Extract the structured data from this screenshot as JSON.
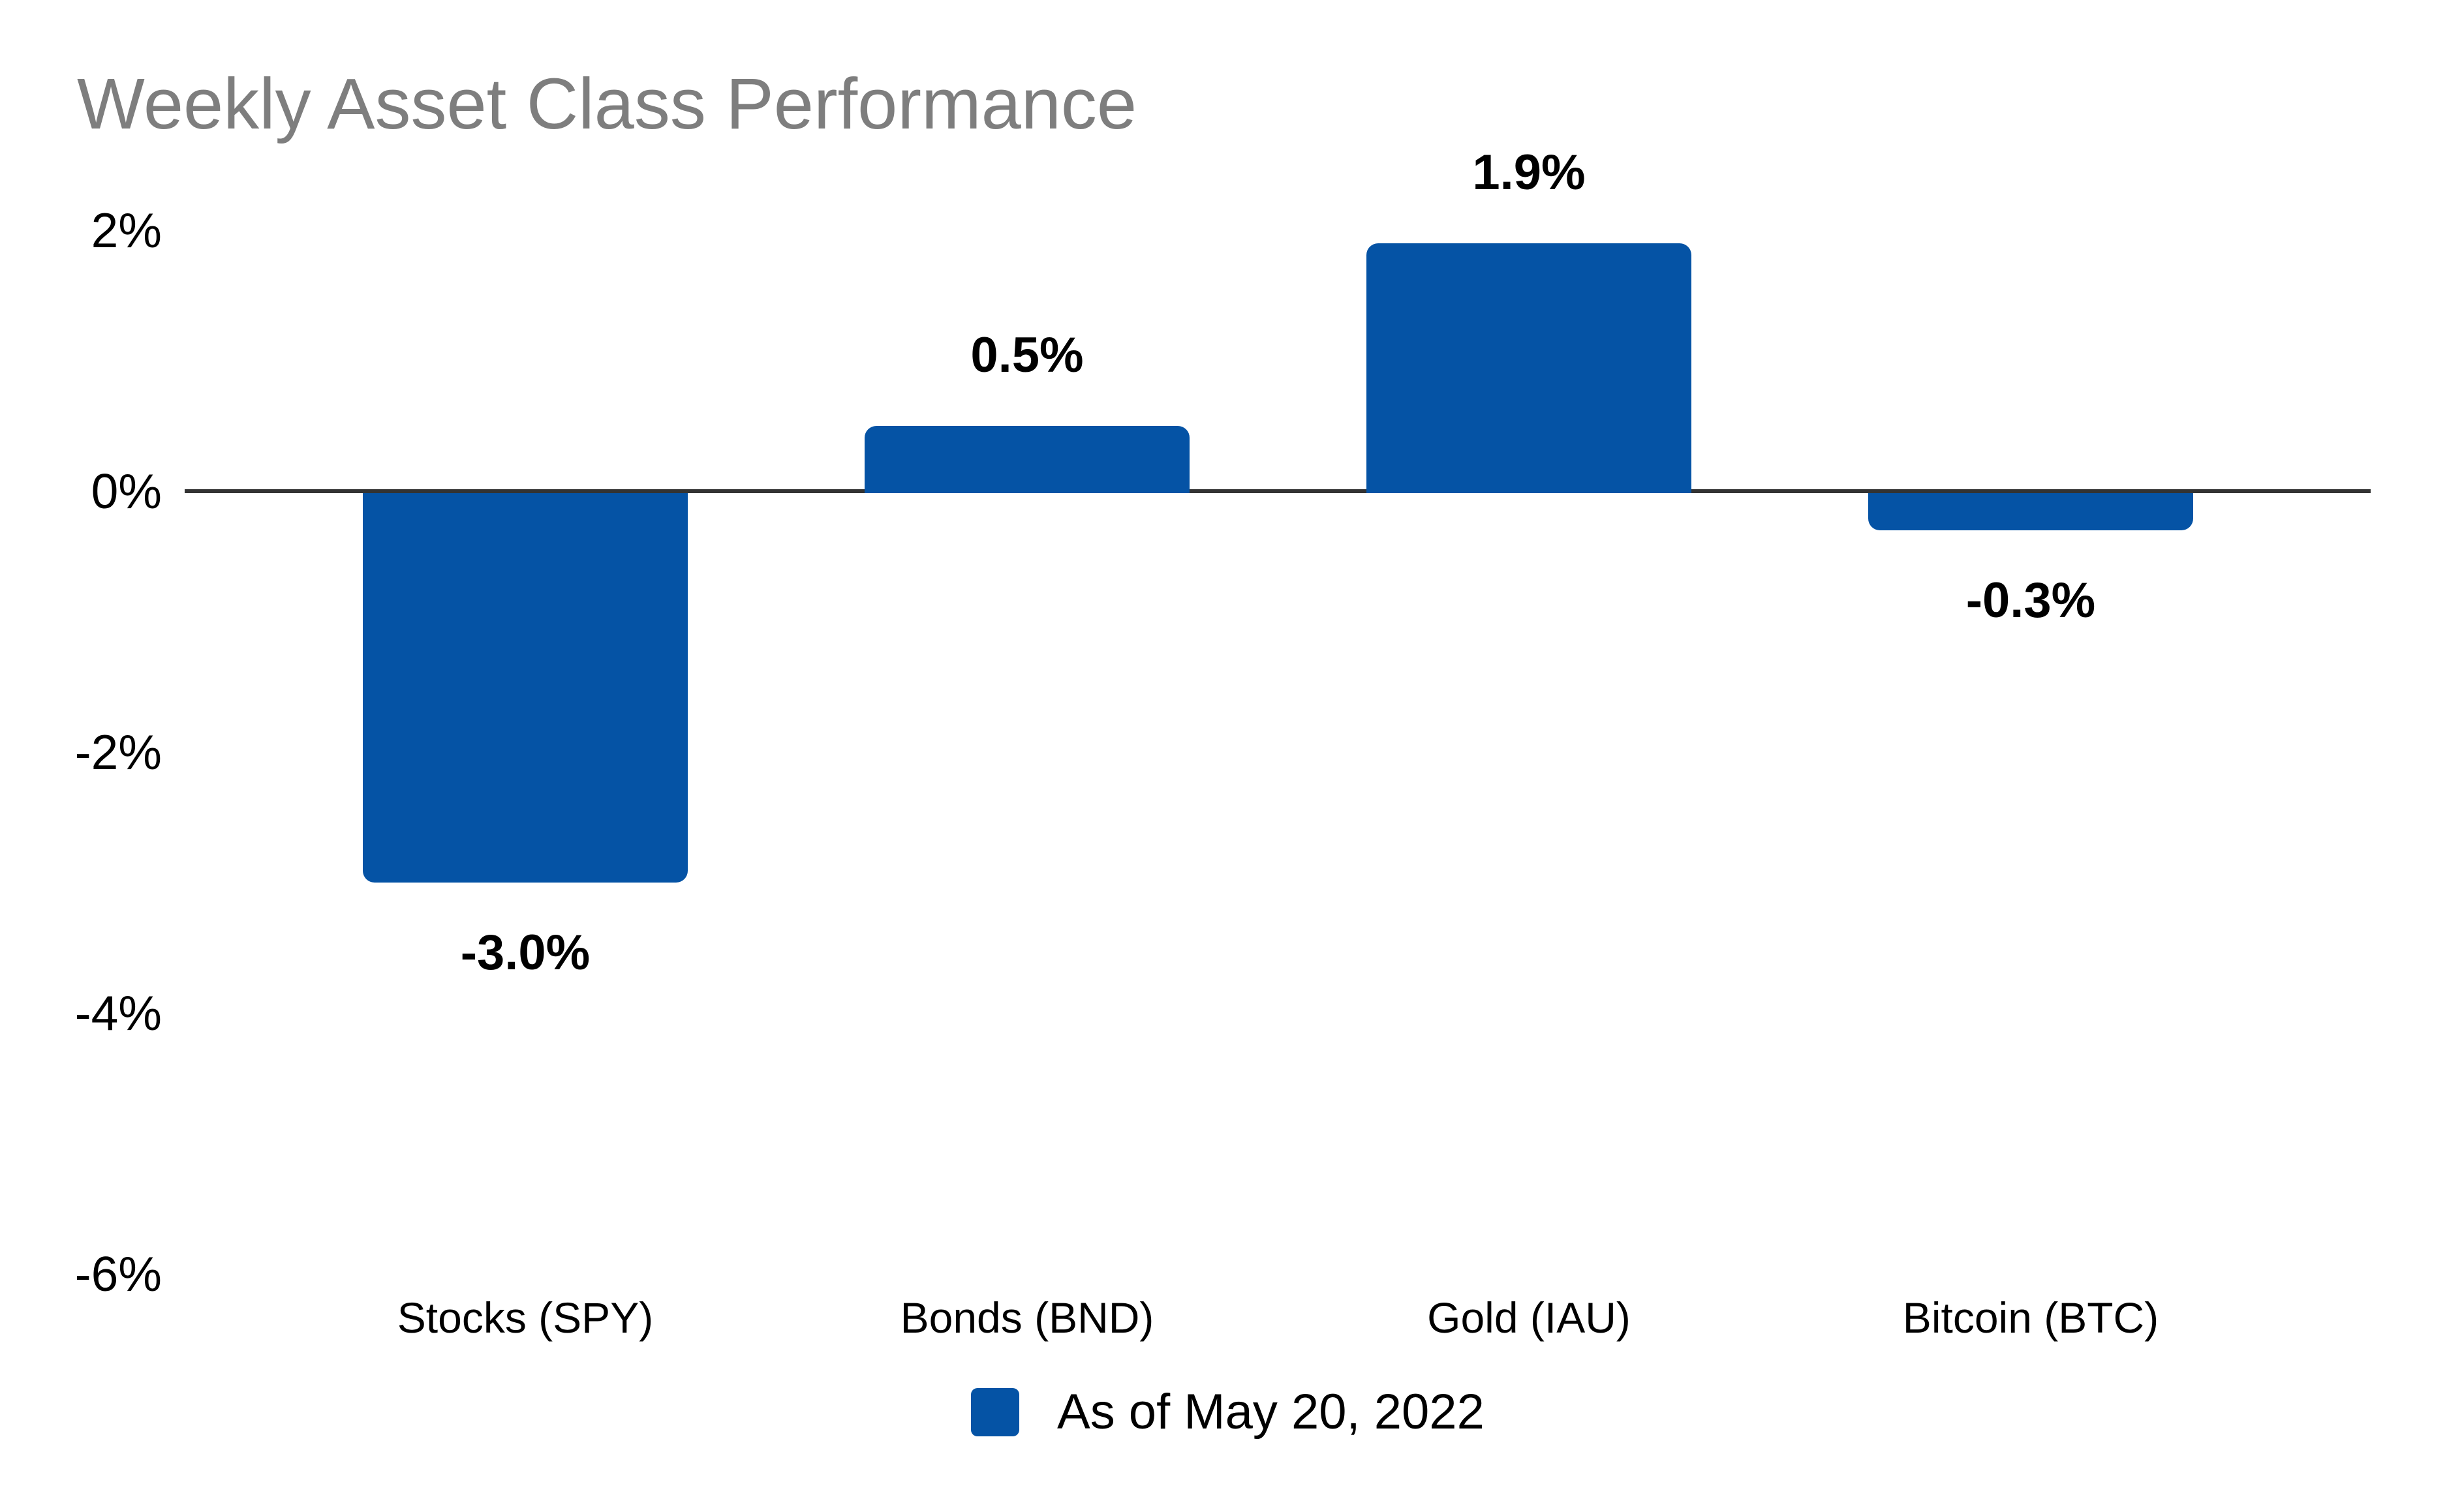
{
  "chart_data": {
    "type": "bar",
    "title": "Weekly Asset Class Performance",
    "categories": [
      "Stocks (SPY)",
      "Bonds (BND)",
      "Gold (IAU)",
      "Bitcoin (BTC)"
    ],
    "series": [
      {
        "name": "As of May 20, 2022",
        "values": [
          -3.0,
          0.5,
          1.9,
          -0.3
        ]
      }
    ],
    "data_labels": [
      "-3.0%",
      "0.5%",
      "1.9%",
      "-0.3%"
    ],
    "y_ticks": [
      {
        "label": "2%",
        "value": 2
      },
      {
        "label": "0%",
        "value": 0
      },
      {
        "label": "-2%",
        "value": -2
      },
      {
        "label": "-4%",
        "value": -4
      },
      {
        "label": "-6%",
        "value": -6
      }
    ],
    "ylim": [
      -6.5,
      2.5
    ],
    "xlabel": "",
    "ylabel": "",
    "grid": false,
    "legend": {
      "position": "bottom-center",
      "label": "As of May 20, 2022"
    },
    "colors": {
      "bar": "#0553A5",
      "title": "#7E7E7E",
      "text": "#000000",
      "axis_line": "#333333",
      "background": "#FFFFFF"
    }
  }
}
